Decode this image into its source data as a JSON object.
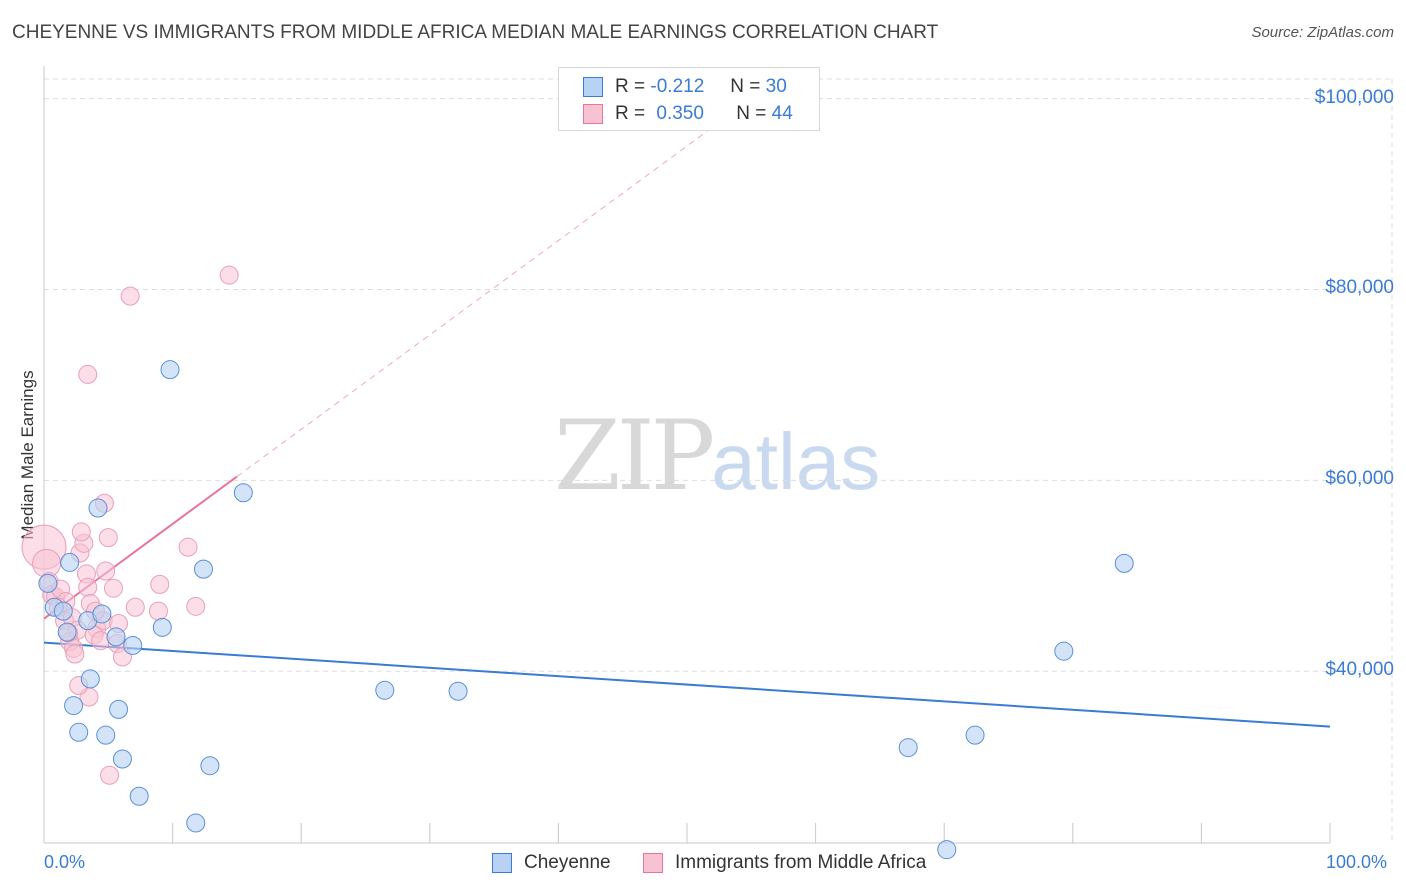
{
  "title": "CHEYENNE VS IMMIGRANTS FROM MIDDLE AFRICA MEDIAN MALE EARNINGS CORRELATION CHART",
  "source": "Source: ZipAtlas.com",
  "watermark": {
    "zip": "ZIP",
    "atlas": "atlas"
  },
  "legend": {
    "r_label": "R =",
    "n_label": "N =",
    "cheyenne": {
      "r": "-0.212",
      "n": "30"
    },
    "immigrants": {
      "r": "0.350",
      "n": "44"
    }
  },
  "colors": {
    "blue": "#3a7bd5",
    "blue_fill": "#b8d2f3",
    "pink": "#e8749a",
    "pink_fill": "#f7c3d3"
  },
  "chart_data": {
    "type": "scatter",
    "title": "CHEYENNE VS IMMIGRANTS FROM MIDDLE AFRICA MEDIAN MALE EARNINGS CORRELATION CHART",
    "xlabel": "",
    "ylabel": "Median Male Earnings",
    "xlim": [
      0,
      100
    ],
    "ylim": [
      22000,
      103000
    ],
    "x_tick_labels": [
      "0.0%",
      "100.0%"
    ],
    "y_ticks": [
      40000,
      60000,
      80000,
      100000
    ],
    "y_tick_labels": [
      "$40,000",
      "$60,000",
      "$80,000",
      "$100,000"
    ],
    "series": [
      {
        "name": "Cheyenne",
        "color": "#3a7bd5",
        "points": [
          [
            0.3,
            49200
          ],
          [
            0.8,
            46700
          ],
          [
            1.5,
            46300
          ],
          [
            1.8,
            44100
          ],
          [
            2.0,
            51400
          ],
          [
            4.2,
            57100
          ],
          [
            3.4,
            45300
          ],
          [
            4.5,
            46000
          ],
          [
            5.6,
            43600
          ],
          [
            6.9,
            42700
          ],
          [
            9.2,
            44600
          ],
          [
            12.4,
            50700
          ],
          [
            9.8,
            71600
          ],
          [
            15.5,
            58700
          ],
          [
            3.6,
            39200
          ],
          [
            2.3,
            36400
          ],
          [
            2.7,
            33600
          ],
          [
            5.8,
            36000
          ],
          [
            4.8,
            33300
          ],
          [
            6.1,
            30800
          ],
          [
            7.4,
            26900
          ],
          [
            12.9,
            30100
          ],
          [
            11.8,
            24100
          ],
          [
            26.5,
            38000
          ],
          [
            32.2,
            37900
          ],
          [
            67.2,
            32000
          ],
          [
            72.4,
            33300
          ],
          [
            79.3,
            42100
          ],
          [
            84.0,
            51300
          ],
          [
            70.2,
            21300
          ]
        ],
        "trend": {
          "x": [
            0,
            100
          ],
          "y": [
            43000,
            34200
          ]
        }
      },
      {
        "name": "Immigrants from Middle Africa",
        "color": "#e8749a",
        "points": [
          [
            0.0,
            53000
          ],
          [
            0.2,
            51300
          ],
          [
            0.4,
            49400
          ],
          [
            0.6,
            48000
          ],
          [
            0.9,
            47800
          ],
          [
            1.3,
            48600
          ],
          [
            1.7,
            47300
          ],
          [
            1.1,
            46700
          ],
          [
            1.6,
            45300
          ],
          [
            2.2,
            45600
          ],
          [
            2.6,
            44300
          ],
          [
            2.0,
            43100
          ],
          [
            2.3,
            42400
          ],
          [
            3.3,
            50200
          ],
          [
            2.8,
            52400
          ],
          [
            3.1,
            53400
          ],
          [
            2.9,
            54600
          ],
          [
            3.4,
            48800
          ],
          [
            3.6,
            47100
          ],
          [
            4.1,
            44500
          ],
          [
            4.6,
            45300
          ],
          [
            3.9,
            43800
          ],
          [
            4.4,
            43200
          ],
          [
            4.8,
            50500
          ],
          [
            4.7,
            57600
          ],
          [
            5.0,
            54000
          ],
          [
            5.4,
            48700
          ],
          [
            5.8,
            45000
          ],
          [
            5.7,
            42900
          ],
          [
            3.5,
            37300
          ],
          [
            2.7,
            38500
          ],
          [
            5.1,
            29100
          ],
          [
            7.1,
            46700
          ],
          [
            8.9,
            46300
          ],
          [
            9.0,
            49100
          ],
          [
            11.2,
            53000
          ],
          [
            11.8,
            46800
          ],
          [
            3.4,
            71100
          ],
          [
            6.7,
            79300
          ],
          [
            14.4,
            81500
          ],
          [
            2.4,
            41800
          ],
          [
            1.9,
            44000
          ],
          [
            6.1,
            41500
          ],
          [
            4.0,
            46300
          ]
        ],
        "trend": {
          "x": [
            0,
            15
          ],
          "y": [
            45500,
            60400
          ]
        },
        "trend_extended": {
          "x": [
            15,
            53
          ],
          "y": [
            60400,
            98000
          ]
        }
      }
    ]
  }
}
